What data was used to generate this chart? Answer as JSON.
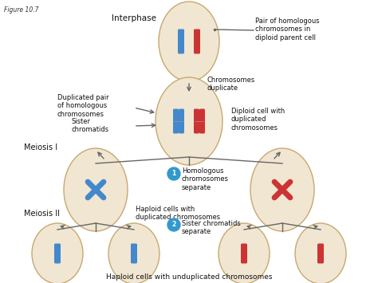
{
  "bg_color": "#ffffff",
  "cell_color": "#f0e6d2",
  "cell_edge_color": "#c8a870",
  "blue_chr": "#4488cc",
  "red_chr": "#cc3333",
  "arrow_color": "#666666",
  "text_color": "#111111",
  "circle_annotation_blue": "#3399cc",
  "title": "Figure 10.7",
  "labels": {
    "interphase": "Interphase",
    "meiosis_I": "Meiosis I",
    "meiosis_II": "Meiosis II",
    "pair_homologous": "Pair of homologous\nchromosomes in\ndiploid parent cell",
    "chromosomes_duplicate": "Chromosomes\nduplicate",
    "duplicated_pair": "Duplicated pair\nof homologous\nchromosomes",
    "sister_chromatids": "Sister\nchromatids",
    "diploid_duplicated": "Diploid cell with\nduplicated\nchromosomes",
    "homologous_separate": "Homologous\nchromosomes\nseparate",
    "haploid_duplicated": "Haploid cells with\nduplicated chromosomes",
    "sister_separate": "Sister chromatids\nseparate",
    "haploid_unduplicated": "Haploid cells with unduplicated chromosomes"
  }
}
